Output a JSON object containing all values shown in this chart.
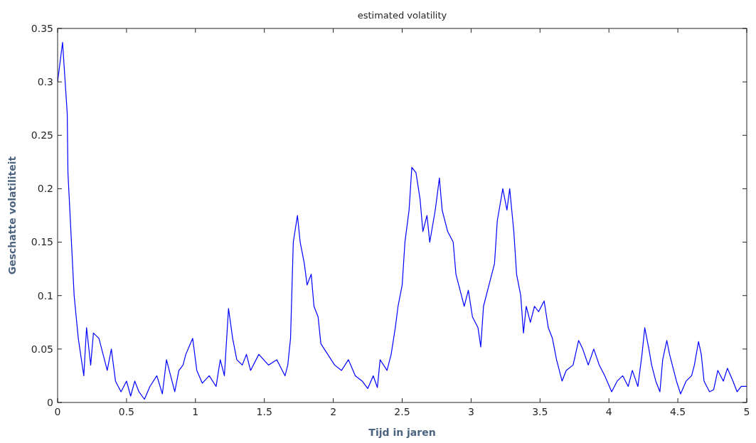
{
  "chart_data": {
    "type": "line",
    "title": "estimated volatility",
    "xlabel": "Tijd in jaren",
    "ylabel": "Geschatte volatiliteit",
    "xlim": [
      0,
      5
    ],
    "ylim": [
      0,
      0.35
    ],
    "xticks": [
      0,
      0.5,
      1,
      1.5,
      2,
      2.5,
      3,
      3.5,
      4,
      4.5,
      5
    ],
    "yticks": [
      0,
      0.05,
      0.1,
      0.15,
      0.2,
      0.25,
      0.3,
      0.35
    ],
    "grid": false,
    "marker": "none",
    "line_style": "solid",
    "series": [
      {
        "color": "#0000ff",
        "x": [
          0,
          0.036,
          0.07,
          0.075,
          0.12,
          0.15,
          0.19,
          0.21,
          0.24,
          0.26,
          0.3,
          0.33,
          0.36,
          0.39,
          0.42,
          0.46,
          0.5,
          0.53,
          0.56,
          0.59,
          0.63,
          0.67,
          0.72,
          0.76,
          0.79,
          0.85,
          0.88,
          0.91,
          0.93,
          0.98,
          1.01,
          1.05,
          1.1,
          1.15,
          1.18,
          1.21,
          1.24,
          1.27,
          1.3,
          1.34,
          1.37,
          1.4,
          1.46,
          1.53,
          1.59,
          1.65,
          1.67,
          1.69,
          1.71,
          1.74,
          1.76,
          1.79,
          1.81,
          1.84,
          1.86,
          1.89,
          1.91,
          1.96,
          2.01,
          2.06,
          2.11,
          2.16,
          2.21,
          2.25,
          2.29,
          2.32,
          2.34,
          2.39,
          2.42,
          2.45,
          2.47,
          2.5,
          2.52,
          2.55,
          2.57,
          2.6,
          2.63,
          2.65,
          2.68,
          2.7,
          2.74,
          2.77,
          2.79,
          2.83,
          2.87,
          2.89,
          2.93,
          2.95,
          2.98,
          3.01,
          3.05,
          3.07,
          3.09,
          3.13,
          3.17,
          3.19,
          3.23,
          3.26,
          3.28,
          3.31,
          3.33,
          3.36,
          3.38,
          3.4,
          3.43,
          3.46,
          3.49,
          3.53,
          3.56,
          3.59,
          3.62,
          3.66,
          3.69,
          3.74,
          3.78,
          3.81,
          3.85,
          3.89,
          3.93,
          3.97,
          4.02,
          4.06,
          4.1,
          4.14,
          4.17,
          4.21,
          4.24,
          4.26,
          4.29,
          4.31,
          4.34,
          4.37,
          4.39,
          4.42,
          4.44,
          4.47,
          4.49,
          4.52,
          4.56,
          4.6,
          4.62,
          4.65,
          4.67,
          4.69,
          4.73,
          4.76,
          4.79,
          4.83,
          4.86,
          4.9,
          4.93,
          4.96,
          5
        ],
        "values": [
          0.3,
          0.337,
          0.27,
          0.215,
          0.1,
          0.06,
          0.025,
          0.07,
          0.035,
          0.065,
          0.06,
          0.045,
          0.03,
          0.05,
          0.02,
          0.01,
          0.02,
          0.006,
          0.02,
          0.01,
          0.003,
          0.015,
          0.025,
          0.008,
          0.04,
          0.01,
          0.03,
          0.035,
          0.045,
          0.06,
          0.03,
          0.018,
          0.025,
          0.015,
          0.04,
          0.025,
          0.088,
          0.06,
          0.04,
          0.035,
          0.045,
          0.03,
          0.045,
          0.035,
          0.04,
          0.025,
          0.035,
          0.06,
          0.15,
          0.175,
          0.15,
          0.13,
          0.11,
          0.12,
          0.09,
          0.08,
          0.055,
          0.045,
          0.035,
          0.03,
          0.04,
          0.025,
          0.02,
          0.013,
          0.025,
          0.014,
          0.04,
          0.03,
          0.045,
          0.07,
          0.09,
          0.11,
          0.15,
          0.18,
          0.22,
          0.215,
          0.19,
          0.16,
          0.175,
          0.15,
          0.18,
          0.21,
          0.18,
          0.16,
          0.15,
          0.12,
          0.1,
          0.09,
          0.105,
          0.08,
          0.07,
          0.052,
          0.09,
          0.11,
          0.13,
          0.17,
          0.2,
          0.18,
          0.2,
          0.16,
          0.12,
          0.1,
          0.065,
          0.09,
          0.075,
          0.09,
          0.085,
          0.095,
          0.07,
          0.06,
          0.04,
          0.02,
          0.03,
          0.035,
          0.058,
          0.05,
          0.035,
          0.05,
          0.035,
          0.025,
          0.01,
          0.02,
          0.025,
          0.015,
          0.03,
          0.015,
          0.045,
          0.07,
          0.05,
          0.035,
          0.02,
          0.01,
          0.04,
          0.058,
          0.045,
          0.03,
          0.02,
          0.008,
          0.02,
          0.025,
          0.035,
          0.057,
          0.045,
          0.02,
          0.01,
          0.012,
          0.03,
          0.02,
          0.032,
          0.02,
          0.01,
          0.015,
          0.015
        ]
      }
    ]
  }
}
